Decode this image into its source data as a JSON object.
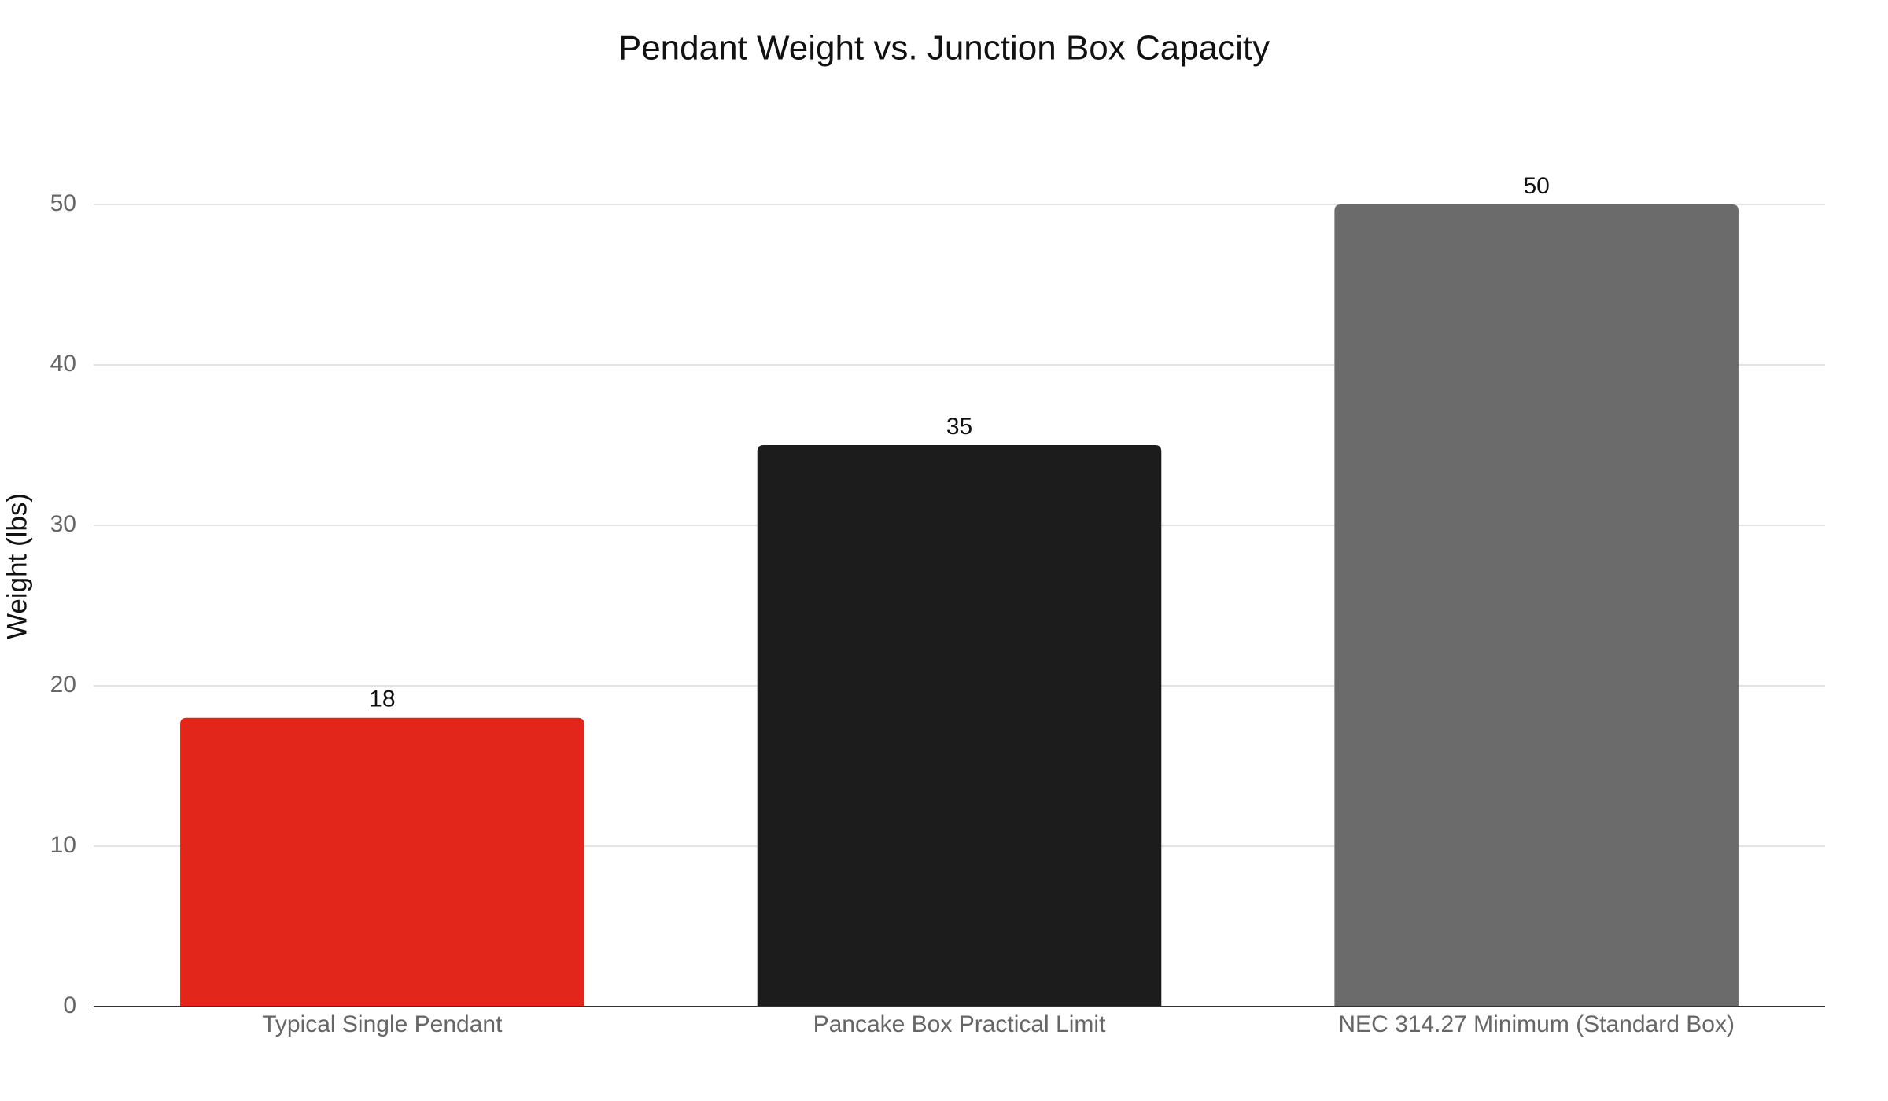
{
  "chart_data": {
    "type": "bar",
    "title": "Pendant Weight vs. Junction Box Capacity",
    "y_label": "Weight (lbs)",
    "categories": [
      "Typical Single Pendant",
      "Pancake Box Practical Limit",
      "NEC 314.27 Minimum (Standard Box)"
    ],
    "values": [
      18,
      35,
      50
    ],
    "colors": [
      "#e2261b",
      "#1c1c1c",
      "#6b6b6b"
    ],
    "ylim": [
      0,
      50
    ],
    "yticks": [
      0,
      10,
      20,
      30,
      40,
      50
    ],
    "grid": true
  }
}
